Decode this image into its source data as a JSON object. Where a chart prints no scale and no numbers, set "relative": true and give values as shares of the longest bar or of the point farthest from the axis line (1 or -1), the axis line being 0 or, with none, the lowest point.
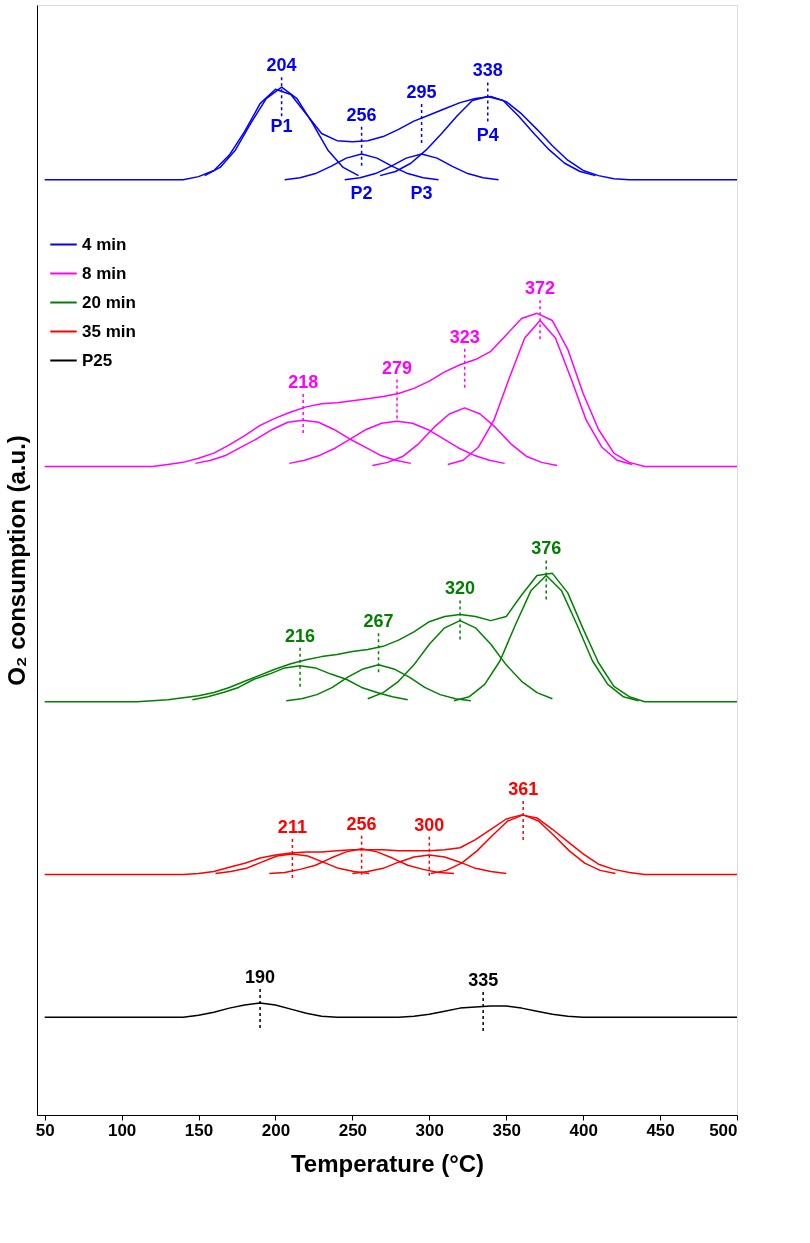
{
  "chart_data": {
    "type": "line",
    "relative": true,
    "xlabel": "Temperature (°C)",
    "ylabel": "O₂ consumption (a.u.)",
    "xlim": [
      45,
      500
    ],
    "xticks": [
      50,
      100,
      150,
      200,
      250,
      300,
      350,
      400,
      450,
      500
    ],
    "x": [
      50,
      60,
      70,
      80,
      90,
      100,
      110,
      120,
      130,
      140,
      150,
      160,
      170,
      180,
      190,
      200,
      210,
      220,
      230,
      240,
      250,
      260,
      270,
      280,
      290,
      300,
      310,
      320,
      330,
      340,
      350,
      360,
      370,
      380,
      390,
      400,
      410,
      420,
      430,
      440,
      450,
      460,
      470,
      480,
      490,
      500
    ],
    "grid": false,
    "legend": "top left",
    "series": [
      {
        "name": "4 min",
        "color": "#0000ff",
        "values": [
          0.91,
          0.91,
          0.91,
          0.91,
          0.91,
          0.91,
          0.91,
          0.91,
          0.91,
          0.91,
          0.913,
          0.919,
          0.934,
          0.957,
          0.984,
          0.998,
          0.993,
          0.974,
          0.955,
          0.948,
          0.947,
          0.948,
          0.952,
          0.959,
          0.967,
          0.973,
          0.979,
          0.985,
          0.989,
          0.991,
          0.986,
          0.974,
          0.959,
          0.943,
          0.929,
          0.919,
          0.914,
          0.911,
          0.91,
          0.91,
          0.91,
          0.91,
          0.91,
          0.91,
          0.91,
          0.91
        ]
      },
      {
        "name": "8 min",
        "color": "#ff00ff",
        "values": [
          0.631,
          0.631,
          0.631,
          0.631,
          0.631,
          0.631,
          0.631,
          0.631,
          0.633,
          0.635,
          0.639,
          0.644,
          0.652,
          0.661,
          0.671,
          0.678,
          0.684,
          0.689,
          0.692,
          0.693,
          0.695,
          0.697,
          0.699,
          0.702,
          0.707,
          0.714,
          0.723,
          0.73,
          0.735,
          0.743,
          0.759,
          0.775,
          0.78,
          0.773,
          0.745,
          0.702,
          0.667,
          0.644,
          0.635,
          0.631,
          0.631,
          0.631,
          0.631,
          0.631,
          0.631,
          0.631
        ]
      },
      {
        "name": "20 min",
        "color": "#008000",
        "values": [
          0.402,
          0.402,
          0.402,
          0.402,
          0.402,
          0.402,
          0.402,
          0.403,
          0.404,
          0.406,
          0.408,
          0.411,
          0.416,
          0.422,
          0.428,
          0.434,
          0.439,
          0.443,
          0.446,
          0.448,
          0.451,
          0.453,
          0.456,
          0.462,
          0.47,
          0.48,
          0.485,
          0.487,
          0.485,
          0.481,
          0.485,
          0.506,
          0.525,
          0.527,
          0.508,
          0.473,
          0.44,
          0.417,
          0.407,
          0.402,
          0.402,
          0.402,
          0.402,
          0.402,
          0.402,
          0.402
        ]
      },
      {
        "name": "35 min",
        "color": "#ff0000",
        "values": [
          0.234,
          0.234,
          0.234,
          0.234,
          0.234,
          0.234,
          0.234,
          0.234,
          0.234,
          0.234,
          0.235,
          0.237,
          0.241,
          0.245,
          0.25,
          0.253,
          0.255,
          0.256,
          0.256,
          0.257,
          0.258,
          0.258,
          0.258,
          0.257,
          0.257,
          0.257,
          0.258,
          0.26,
          0.268,
          0.278,
          0.288,
          0.292,
          0.289,
          0.278,
          0.266,
          0.254,
          0.244,
          0.239,
          0.236,
          0.234,
          0.234,
          0.234,
          0.234,
          0.234,
          0.234,
          0.234
        ]
      },
      {
        "name": "P25",
        "color": "#000000",
        "values": [
          0.095,
          0.095,
          0.095,
          0.095,
          0.095,
          0.095,
          0.095,
          0.095,
          0.095,
          0.095,
          0.097,
          0.1,
          0.104,
          0.107,
          0.109,
          0.107,
          0.103,
          0.099,
          0.096,
          0.095,
          0.095,
          0.095,
          0.095,
          0.095,
          0.096,
          0.098,
          0.101,
          0.104,
          0.105,
          0.106,
          0.106,
          0.104,
          0.101,
          0.098,
          0.096,
          0.095,
          0.095,
          0.095,
          0.095,
          0.095,
          0.095,
          0.095,
          0.095,
          0.095,
          0.095,
          0.095
        ]
      },
      {
        "color": "#0000ff",
        "x": [
          154,
          164,
          174,
          184,
          194,
          204,
          214,
          224,
          234,
          244,
          254
        ],
        "values": [
          0.914,
          0.922,
          0.939,
          0.965,
          0.989,
          1.0,
          0.989,
          0.965,
          0.939,
          0.922,
          0.914
        ]
      },
      {
        "color": "#0000ff",
        "x": [
          206,
          216,
          226,
          236,
          246,
          256,
          266,
          276,
          286,
          296,
          306
        ],
        "values": [
          0.91,
          0.912,
          0.916,
          0.923,
          0.931,
          0.935,
          0.931,
          0.923,
          0.916,
          0.912,
          0.91
        ]
      },
      {
        "color": "#0000ff",
        "x": [
          245,
          255,
          265,
          275,
          285,
          295,
          305,
          315,
          325,
          335,
          345
        ],
        "values": [
          0.91,
          0.912,
          0.916,
          0.923,
          0.931,
          0.935,
          0.931,
          0.923,
          0.916,
          0.912,
          0.91
        ]
      },
      {
        "color": "#0000ff",
        "x": [
          268,
          278,
          288,
          298,
          308,
          318,
          328,
          338,
          348,
          358,
          368,
          378,
          388,
          398,
          408
        ],
        "values": [
          0.914,
          0.918,
          0.926,
          0.939,
          0.955,
          0.972,
          0.987,
          0.991,
          0.987,
          0.972,
          0.955,
          0.939,
          0.926,
          0.918,
          0.914
        ]
      },
      {
        "color": "#ff00ff",
        "x": [
          148,
          158,
          168,
          178,
          188,
          198,
          208,
          218,
          228,
          238,
          248,
          258,
          268,
          278,
          288
        ],
        "values": [
          0.634,
          0.637,
          0.642,
          0.65,
          0.658,
          0.667,
          0.674,
          0.676,
          0.674,
          0.667,
          0.658,
          0.65,
          0.642,
          0.637,
          0.634
        ]
      },
      {
        "color": "#ff00ff",
        "x": [
          209,
          219,
          229,
          239,
          249,
          259,
          269,
          279,
          289,
          299,
          309,
          319,
          329,
          339,
          349
        ],
        "values": [
          0.634,
          0.637,
          0.642,
          0.649,
          0.658,
          0.667,
          0.673,
          0.675,
          0.673,
          0.667,
          0.658,
          0.649,
          0.642,
          0.637,
          0.634
        ]
      },
      {
        "color": "#ff00ff",
        "x": [
          263,
          273,
          283,
          293,
          303,
          313,
          323,
          333,
          343,
          353,
          363,
          373,
          383
        ],
        "values": [
          0.632,
          0.635,
          0.641,
          0.653,
          0.669,
          0.682,
          0.688,
          0.682,
          0.669,
          0.653,
          0.641,
          0.635,
          0.632
        ]
      },
      {
        "color": "#ff00ff",
        "x": [
          312,
          322,
          332,
          342,
          352,
          362,
          372,
          382,
          392,
          402,
          412,
          422,
          432
        ],
        "values": [
          0.633,
          0.637,
          0.65,
          0.676,
          0.717,
          0.756,
          0.773,
          0.756,
          0.717,
          0.676,
          0.65,
          0.637,
          0.633
        ]
      },
      {
        "color": "#008000",
        "x": [
          146,
          156,
          166,
          176,
          186,
          196,
          206,
          216,
          226,
          236,
          246,
          256,
          266,
          276,
          286
        ],
        "values": [
          0.404,
          0.407,
          0.411,
          0.416,
          0.424,
          0.429,
          0.435,
          0.437,
          0.435,
          0.429,
          0.424,
          0.416,
          0.411,
          0.407,
          0.404
        ]
      },
      {
        "color": "#008000",
        "x": [
          207,
          217,
          227,
          237,
          247,
          257,
          267,
          277,
          287,
          297,
          307,
          317,
          327
        ],
        "values": [
          0.403,
          0.405,
          0.409,
          0.416,
          0.426,
          0.434,
          0.438,
          0.434,
          0.426,
          0.416,
          0.409,
          0.405,
          0.403
        ]
      },
      {
        "color": "#008000",
        "x": [
          260,
          270,
          280,
          290,
          300,
          310,
          320,
          330,
          340,
          350,
          360,
          370,
          380
        ],
        "values": [
          0.405,
          0.411,
          0.422,
          0.438,
          0.458,
          0.474,
          0.481,
          0.474,
          0.458,
          0.438,
          0.422,
          0.411,
          0.405
        ]
      },
      {
        "color": "#008000",
        "x": [
          316,
          326,
          336,
          346,
          356,
          366,
          376,
          386,
          396,
          406,
          416,
          426,
          436
        ],
        "values": [
          0.403,
          0.407,
          0.419,
          0.442,
          0.477,
          0.51,
          0.525,
          0.51,
          0.477,
          0.442,
          0.419,
          0.407,
          0.403
        ]
      },
      {
        "color": "#ff0000",
        "x": [
          161,
          171,
          181,
          191,
          201,
          211,
          221,
          231,
          241,
          251,
          261
        ],
        "values": [
          0.235,
          0.237,
          0.24,
          0.246,
          0.252,
          0.254,
          0.252,
          0.246,
          0.24,
          0.237,
          0.235
        ]
      },
      {
        "color": "#ff0000",
        "x": [
          196,
          206,
          216,
          226,
          236,
          246,
          256,
          266,
          276,
          286,
          296,
          306,
          316
        ],
        "values": [
          0.235,
          0.236,
          0.239,
          0.243,
          0.25,
          0.256,
          0.259,
          0.256,
          0.25,
          0.243,
          0.239,
          0.236,
          0.235
        ]
      },
      {
        "color": "#ff0000",
        "x": [
          250,
          260,
          270,
          280,
          290,
          300,
          310,
          320,
          330,
          340,
          350
        ],
        "values": [
          0.235,
          0.237,
          0.24,
          0.246,
          0.251,
          0.253,
          0.251,
          0.246,
          0.24,
          0.237,
          0.235
        ]
      },
      {
        "color": "#ff0000",
        "x": [
          301,
          311,
          321,
          331,
          341,
          351,
          361,
          371,
          381,
          391,
          401,
          411,
          421
        ],
        "values": [
          0.235,
          0.238,
          0.245,
          0.257,
          0.272,
          0.286,
          0.292,
          0.286,
          0.272,
          0.257,
          0.245,
          0.238,
          0.235
        ]
      }
    ],
    "annotations": [
      {
        "text": "204",
        "x": 204,
        "y": 0.996
      },
      {
        "text": "P1",
        "x": 204,
        "y": 1.0
      },
      {
        "text": "256",
        "x": 256,
        "y": 0.948
      },
      {
        "text": "P2",
        "x": 256,
        "y": 0.935
      },
      {
        "text": "295",
        "x": 295,
        "y": 0.97
      },
      {
        "text": "P3",
        "x": 295,
        "y": 0.935
      },
      {
        "text": "338",
        "x": 338,
        "y": 0.991
      },
      {
        "text": "P4",
        "x": 338,
        "y": 0.991
      },
      {
        "text": "218",
        "x": 218,
        "y": 0.688
      },
      {
        "text": "279",
        "x": 279,
        "y": 0.702
      },
      {
        "text": "323",
        "x": 323,
        "y": 0.732
      },
      {
        "text": "372",
        "x": 372,
        "y": 0.779
      },
      {
        "text": "216",
        "x": 216,
        "y": 0.441
      },
      {
        "text": "267",
        "x": 267,
        "y": 0.455
      },
      {
        "text": "320",
        "x": 320,
        "y": 0.487
      },
      {
        "text": "376",
        "x": 376,
        "y": 0.526
      },
      {
        "text": "211",
        "x": 211,
        "y": 0.255
      },
      {
        "text": "256",
        "x": 256,
        "y": 0.258
      },
      {
        "text": "300",
        "x": 300,
        "y": 0.257
      },
      {
        "text": "361",
        "x": 361,
        "y": 0.292
      },
      {
        "text": "190",
        "x": 190,
        "y": 0.109
      },
      {
        "text": "335",
        "x": 335,
        "y": 0.106
      }
    ]
  }
}
